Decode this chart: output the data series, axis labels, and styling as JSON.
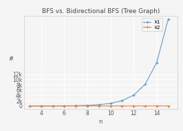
{
  "title": "BFS vs. Bidirectional BFS (Tree Graph)",
  "xlabel": "n",
  "ylabel": "#",
  "x_values": [
    3,
    4,
    5,
    6,
    7,
    8,
    9,
    10,
    11,
    12,
    13,
    14,
    15
  ],
  "k1_values": [
    7,
    15,
    31,
    63,
    127,
    255,
    511,
    1023,
    2047,
    4095,
    8191,
    16383,
    32767
  ],
  "k2_values": [
    7,
    9,
    11,
    13,
    15,
    17,
    19,
    21,
    23,
    25,
    27,
    29,
    31
  ],
  "color_k1": "#5b9bd5",
  "color_k2": "#ed7d31",
  "legend_k1": "k1",
  "legend_k2": "k2",
  "xlim": [
    2.5,
    15.8
  ],
  "ylim": [
    -1000,
    34000
  ],
  "yticks": [
    0,
    2000,
    4000,
    6000,
    8000,
    10000,
    12000
  ],
  "ytick_labels": [
    "0",
    "2k",
    "4k",
    "6k",
    "8k",
    "10k",
    "12k"
  ],
  "xticks": [
    4,
    6,
    8,
    10,
    12,
    14
  ],
  "bg_color": "#f5f5f5",
  "grid_color": "#ffffff",
  "title_fontsize": 6.5,
  "label_fontsize": 6,
  "tick_fontsize": 5.5,
  "legend_fontsize": 5
}
